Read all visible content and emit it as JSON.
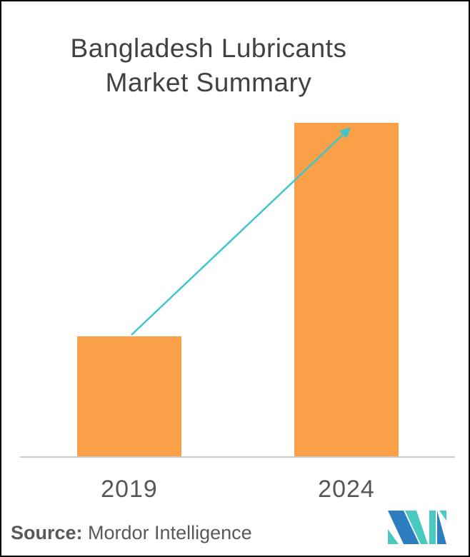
{
  "page": {
    "background_color": "#ffffff",
    "frame_border_color": "#000000"
  },
  "title": {
    "line1": "Bangladesh Lubricants",
    "line2": "Market Summary",
    "color": "#414042"
  },
  "chart_data": {
    "type": "bar",
    "title": "Bangladesh Lubricants Market Summary",
    "categories": [
      "2019",
      "2024"
    ],
    "values": [
      36,
      100
    ],
    "value_axis": "hidden - no scale shown; values are relative bar heights with 2024 = 100",
    "xlabel": "",
    "ylabel": "",
    "grid": false,
    "legend": "none",
    "bar_color": "#F9A048",
    "axis_line_color": "#C9CACB",
    "category_label_color": "#55565A",
    "annotations": [
      {
        "type": "growth-arrow",
        "from": "top of 2019 bar",
        "to": "top of 2024 bar",
        "color": "#40C5CB"
      }
    ]
  },
  "footer": {
    "source_label": "Source:",
    "source_value": " Mordor Intelligence",
    "color": "#58595B",
    "logo": {
      "name": "mordor-intelligence-logo",
      "blue": "#2D7EC0",
      "teal": "#4AC9C2"
    }
  }
}
